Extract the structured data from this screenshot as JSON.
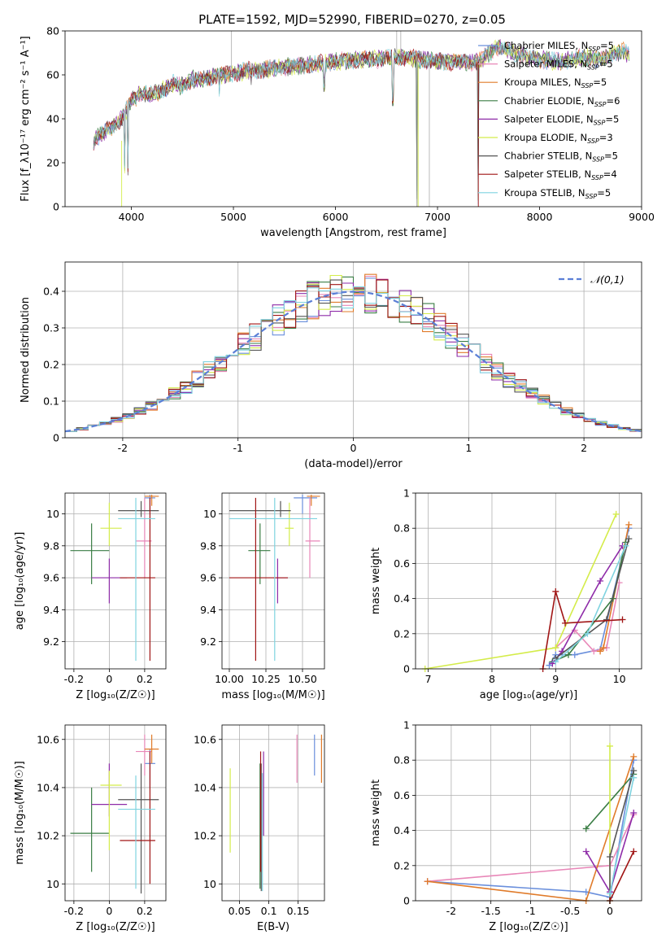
{
  "figure_title": "PLATE=1592, MJD=52990, FIBERID=0270, z=0.05",
  "colors": {
    "Chabrier MILES": "#6a8fdc",
    "Salpeter MILES": "#e887b8",
    "Kroupa MILES": "#e07b2a",
    "Chabrier ELODIE": "#3a7d44",
    "Salpeter ELODIE": "#8e2ba8",
    "Kroupa ELODIE": "#d4ec4a",
    "Chabrier STELIB": "#555555",
    "Salpeter STELIB": "#a01515",
    "Kroupa STELIB": "#7fd3e0"
  },
  "chart_data": [
    {
      "id": "spectrum",
      "type": "line",
      "xlabel": "wavelength [Angstrom, rest frame]",
      "ylabel": "Flux [f_λ10⁻¹⁷ erg cm⁻² s⁻¹ A⁻¹]",
      "xlim": [
        3350,
        9000
      ],
      "ylim": [
        0,
        80
      ],
      "xticks": [
        4000,
        5000,
        6000,
        7000,
        8000,
        9000
      ],
      "yticks": [
        0,
        20,
        40,
        60,
        80
      ],
      "grid": false,
      "legend_position": "right",
      "legend": [
        {
          "name": "Chabrier MILES",
          "nssp": "5"
        },
        {
          "name": "Salpeter MILES",
          "nssp": "5"
        },
        {
          "name": "Kroupa MILES",
          "nssp": "5"
        },
        {
          "name": "Chabrier ELODIE",
          "nssp": "6"
        },
        {
          "name": "Salpeter ELODIE",
          "nssp": "5"
        },
        {
          "name": "Kroupa ELODIE",
          "nssp": "3"
        },
        {
          "name": "Chabrier STELIB",
          "nssp": "5"
        },
        {
          "name": "Salpeter STELIB",
          "nssp": "4"
        },
        {
          "name": "Kroupa STELIB",
          "nssp": "5"
        }
      ],
      "continuum": {
        "x": [
          3630,
          3700,
          3800,
          3900,
          4000,
          4100,
          4200,
          4300,
          4400,
          4500,
          4600,
          4700,
          4800,
          4900,
          5000,
          5200,
          5400,
          5600,
          5800,
          6000,
          6200,
          6400,
          6560,
          6700,
          6800,
          7000,
          7200,
          7400,
          7600,
          7800,
          8000,
          8200,
          8400,
          8600,
          8800,
          8880
        ],
        "y": [
          30,
          33,
          36,
          40,
          48,
          52,
          51,
          53,
          56,
          55,
          58,
          58,
          59,
          60,
          61,
          62,
          63,
          64,
          65,
          66,
          67,
          67,
          68,
          68,
          67,
          66,
          66,
          66,
          73,
          69,
          67,
          66,
          68,
          67,
          71,
          69
        ]
      },
      "drops": [
        {
          "x": 3933,
          "y": 15
        },
        {
          "x": 3968,
          "y": 13
        },
        {
          "x": 4861,
          "y": 50
        },
        {
          "x": 5175,
          "y": 55
        },
        {
          "x": 5890,
          "y": 52
        },
        {
          "x": 6563,
          "y": 45
        },
        {
          "x": 6800,
          "y": 0
        },
        {
          "x": 7400,
          "y": 0
        }
      ]
    },
    {
      "id": "residuals",
      "type": "histogram",
      "xlabel": "(data-model)/error",
      "ylabel": "Normed distribution",
      "xlim": [
        -2.5,
        2.5
      ],
      "ylim": [
        0,
        0.48
      ],
      "xticks": [
        -2,
        -1,
        0,
        1,
        2
      ],
      "yticks": [
        0.0,
        0.1,
        0.2,
        0.3,
        0.4
      ],
      "grid": true,
      "bin_width": 0.1,
      "reference": {
        "name": "𝒩(0,1)",
        "style": "dashed",
        "color": "#5b7fd6"
      },
      "legend_position": "upper right"
    },
    {
      "id": "age-vs-Z",
      "type": "errorbar",
      "xlabel": "Z [log₁₀(Z/Z☉)]",
      "ylabel": "age  [log₁₀(age/yr)]",
      "xlim": [
        -0.25,
        0.32
      ],
      "ylim": [
        9.03,
        10.13
      ],
      "xticks": [
        -0.2,
        0.0,
        0.2
      ],
      "yticks": [
        9.2,
        9.4,
        9.6,
        9.8,
        10.0
      ],
      "grid": true
    },
    {
      "id": "age-vs-mass",
      "type": "errorbar",
      "xlabel": "mass [log₁₀(M/M☉)]",
      "ylabel": "",
      "xlim": [
        9.95,
        10.65
      ],
      "ylim": [
        9.03,
        10.13
      ],
      "xticks": [
        10.0,
        10.25,
        10.5
      ],
      "yticks": [
        9.2,
        9.4,
        9.6,
        9.8,
        10.0
      ],
      "grid": true
    },
    {
      "id": "weight-vs-age",
      "type": "line",
      "xlabel": "age  [log₁₀(age/yr)]",
      "ylabel": "mass weight",
      "xlim": [
        6.8,
        10.35
      ],
      "ylim": [
        0,
        1.0
      ],
      "xticks": [
        7,
        8,
        9,
        10
      ],
      "yticks": [
        0.0,
        0.2,
        0.4,
        0.6,
        0.8,
        1.0
      ],
      "grid": true
    },
    {
      "id": "mass-vs-Z",
      "type": "errorbar",
      "xlabel": "Z [log₁₀(Z/Z☉)]",
      "ylabel": "mass [log₁₀(M/M☉)]",
      "xlim": [
        -0.25,
        0.32
      ],
      "ylim": [
        9.93,
        10.66
      ],
      "xticks": [
        -0.2,
        0.0,
        0.2
      ],
      "yticks": [
        10.0,
        10.2,
        10.4,
        10.6
      ],
      "grid": true
    },
    {
      "id": "mass-vs-ebv",
      "type": "errorbar",
      "xlabel": "E(B-V)",
      "ylabel": "",
      "xlim": [
        0.02,
        0.195
      ],
      "ylim": [
        9.93,
        10.66
      ],
      "xticks": [
        0.05,
        0.1,
        0.15
      ],
      "yticks": [
        10.0,
        10.2,
        10.4,
        10.6
      ],
      "grid": true
    },
    {
      "id": "weight-vs-Z",
      "type": "line",
      "xlabel": "Z [log₁₀(Z/Z☉)]",
      "ylabel": "mass weight",
      "xlim": [
        -2.45,
        0.4
      ],
      "ylim": [
        0,
        1.0
      ],
      "xticks": [
        -2.0,
        -1.5,
        -1.0,
        -0.5,
        0.0
      ],
      "yticks": [
        0.0,
        0.2,
        0.4,
        0.6,
        0.8,
        1.0
      ],
      "grid": true
    }
  ],
  "models": [
    {
      "name": "Chabrier MILES",
      "Z": 0.23,
      "Zlo": 0.2,
      "Zhi": 0.26,
      "age": 10.1,
      "ageLo": 10.0,
      "ageHi": 10.12,
      "mass": 10.5,
      "massLo": 10.44,
      "massHi": 10.6,
      "mLo": 10.4,
      "mHi": 10.56,
      "ebv": 0.178,
      "ebvLo": 10.45,
      "ebvHi": 10.62,
      "ages": [
        8.9,
        9.0,
        9.3,
        9.7,
        10.15
      ],
      "w_age": [
        0.02,
        0.08,
        0.08,
        0.11,
        0.8
      ],
      "Zs": [
        -2.3,
        -0.3,
        0.0,
        0.3
      ],
      "w_Z": [
        0.11,
        0.05,
        0.02,
        0.8
      ]
    },
    {
      "name": "Salpeter MILES",
      "Z": 0.2,
      "Zlo": 0.15,
      "Zhi": 0.24,
      "age": 9.83,
      "ageLo": 9.6,
      "ageHi": 10.1,
      "mass": 10.55,
      "massLo": 10.52,
      "massHi": 10.62,
      "mLo": 10.45,
      "mHi": 10.62,
      "ebv": 0.148,
      "ebvLo": 10.42,
      "ebvHi": 10.62,
      "ages": [
        9.0,
        9.3,
        9.6,
        9.8,
        10.0
      ],
      "w_age": [
        0.12,
        0.22,
        0.1,
        0.12,
        0.49
      ],
      "Zs": [
        -2.3,
        0.0,
        0.3
      ],
      "w_Z": [
        0.11,
        0.2,
        0.49
      ]
    },
    {
      "name": "Kroupa MILES",
      "Z": 0.24,
      "Zlo": 0.2,
      "Zhi": 0.28,
      "age": 10.11,
      "ageLo": 10.05,
      "ageHi": 10.12,
      "mass": 10.56,
      "massLo": 10.53,
      "massHi": 10.62,
      "mLo": 10.5,
      "mHi": 10.62,
      "ebv": 0.19,
      "ebvLo": 10.42,
      "ebvHi": 10.62,
      "ages": [
        9.7,
        9.75,
        10.15
      ],
      "w_age": [
        0.1,
        0.12,
        0.82
      ],
      "Zs": [
        -2.3,
        -0.3,
        0.3
      ],
      "w_Z": [
        0.11,
        0.0,
        0.82
      ]
    },
    {
      "name": "Chabrier ELODIE",
      "Z": -0.1,
      "Zlo": -0.22,
      "Zhi": 0.0,
      "age": 9.77,
      "ageLo": 9.56,
      "ageHi": 9.94,
      "mass": 10.21,
      "massLo": 10.13,
      "massHi": 10.28,
      "mLo": 10.05,
      "mHi": 10.4,
      "ebv": 0.085,
      "ebvLo": 9.98,
      "ebvHi": 10.5,
      "ages": [
        8.95,
        9.2,
        9.9,
        10.1
      ],
      "w_age": [
        0.04,
        0.08,
        0.4,
        0.72
      ],
      "Zs": [
        -0.3,
        0.3
      ],
      "w_Z": [
        0.41,
        0.72
      ]
    },
    {
      "name": "Salpeter ELODIE",
      "Z": 0.0,
      "Zlo": -0.1,
      "Zhi": 0.1,
      "age": 9.6,
      "ageLo": 9.44,
      "ageHi": 9.72,
      "mass": 10.33,
      "massLo": 10.3,
      "massHi": 10.4,
      "mLo": 10.28,
      "mHi": 10.5,
      "ebv": 0.091,
      "ebvLo": 10.2,
      "ebvHi": 10.55,
      "ages": [
        8.95,
        9.1,
        9.7,
        10.05
      ],
      "w_age": [
        0.03,
        0.1,
        0.5,
        0.7
      ],
      "Zs": [
        -0.3,
        0.0,
        0.3
      ],
      "w_Z": [
        0.28,
        0.05,
        0.5
      ]
    },
    {
      "name": "Kroupa ELODIE",
      "Z": 0.0,
      "Zlo": -0.05,
      "Zhi": 0.07,
      "age": 9.91,
      "ageLo": 9.8,
      "ageHi": 10.07,
      "mass": 10.41,
      "massLo": 10.38,
      "massHi": 10.44,
      "mLo": 10.14,
      "mHi": 10.47,
      "ebv": 0.034,
      "ebvLo": 10.13,
      "ebvHi": 10.48,
      "ages": [
        6.95,
        9.0,
        9.95
      ],
      "w_age": [
        0.0,
        0.12,
        0.88
      ],
      "Zs": [
        0.0,
        0.0
      ],
      "w_Z": [
        0.0,
        0.88
      ]
    },
    {
      "name": "Chabrier STELIB",
      "Z": 0.18,
      "Zlo": 0.05,
      "Zhi": 0.28,
      "age": 10.02,
      "ageLo": 9.98,
      "ageHi": 10.08,
      "mass": 10.35,
      "massLo": 10.0,
      "massHi": 10.42,
      "mLo": 9.96,
      "mHi": 10.5,
      "ebv": 0.087,
      "ebvLo": 9.97,
      "ebvHi": 10.5,
      "ages": [
        9.0,
        9.8,
        10.15
      ],
      "w_age": [
        0.06,
        0.28,
        0.74
      ],
      "Zs": [
        0.0,
        0.0,
        0.3
      ],
      "w_Z": [
        0.0,
        0.25,
        0.74
      ]
    },
    {
      "name": "Salpeter STELIB",
      "Z": 0.23,
      "Zlo": 0.06,
      "Zhi": 0.26,
      "age": 9.6,
      "ageLo": 9.08,
      "ageHi": 10.1,
      "mass": 10.18,
      "massLo": 10.0,
      "massHi": 10.4,
      "mLo": 10.0,
      "mHi": 10.55,
      "ebv": 0.086,
      "ebvLo": 10.05,
      "ebvHi": 10.55,
      "ages": [
        8.8,
        9.0,
        9.15,
        10.05
      ],
      "w_age": [
        0.0,
        0.44,
        0.26,
        0.28
      ],
      "Zs": [
        0.0,
        0.3
      ],
      "w_Z": [
        0.0,
        0.28
      ]
    },
    {
      "name": "Kroupa STELIB",
      "Z": 0.15,
      "Zlo": 0.05,
      "Zhi": 0.26,
      "age": 9.97,
      "ageLo": 9.08,
      "ageHi": 10.1,
      "mass": 10.31,
      "massLo": 10.0,
      "massHi": 10.6,
      "mLo": 9.98,
      "mHi": 10.45,
      "ebv": 0.089,
      "ebvLo": 9.97,
      "ebvHi": 10.46,
      "ages": [
        9.0,
        9.5,
        10.1
      ],
      "w_age": [
        0.04,
        0.2,
        0.7
      ],
      "Zs": [
        0.0,
        0.3
      ],
      "w_Z": [
        0.04,
        0.7
      ]
    }
  ]
}
